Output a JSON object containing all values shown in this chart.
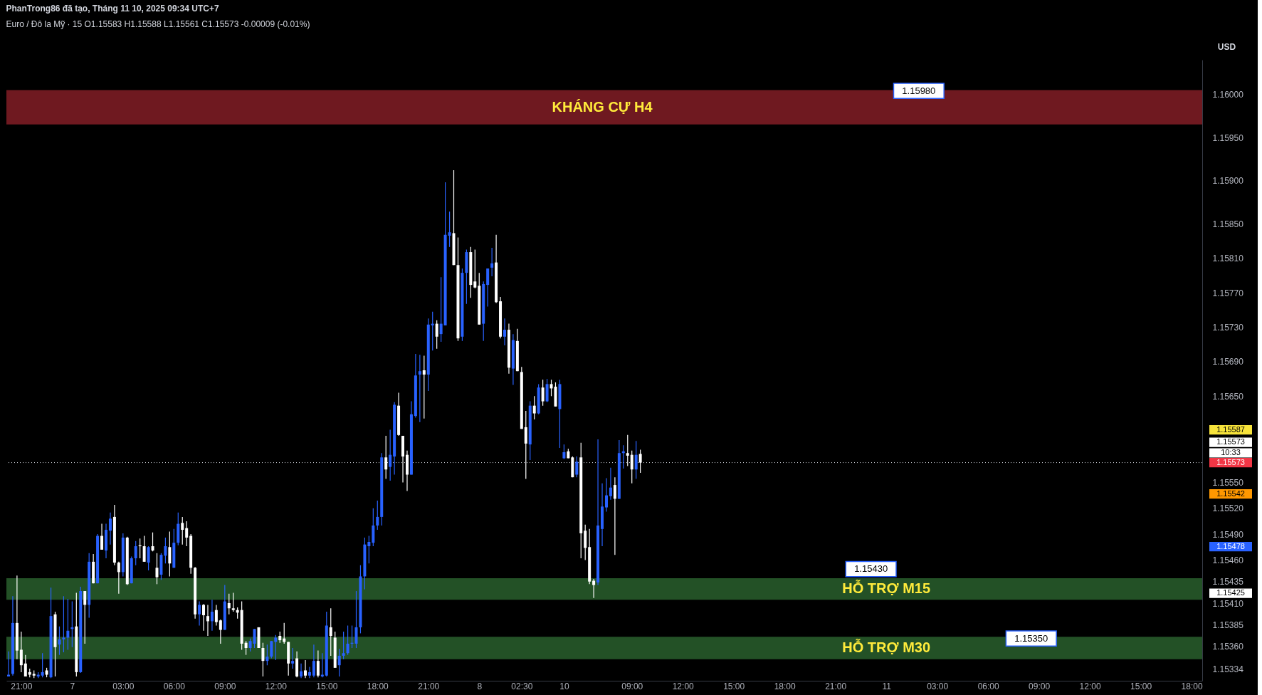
{
  "chart_data": {
    "type": "candlestick",
    "title": "PhanTrong86 đã tạo, Tháng 11 10, 2025 09:34 UTC+7",
    "subtitle": "Euro / Đô la Mỹ · 15  O1.15583  H1.15588  L1.15561  C1.15573  -0.00009 (-0.01%)",
    "ylabel": "USD",
    "categories": [
      null,
      null,
      null,
      "21:00",
      null,
      null,
      null,
      null,
      null,
      null,
      null,
      null,
      null,
      null,
      null,
      "7",
      null,
      null,
      null,
      null,
      null,
      null,
      null,
      null,
      null,
      null,
      null,
      "03:00",
      null,
      null,
      null,
      null,
      null,
      null,
      null,
      null,
      null,
      null,
      null,
      "06:00",
      null,
      null,
      null,
      null,
      null,
      null,
      null,
      null,
      null,
      null,
      null,
      "09:00",
      null,
      null,
      null,
      null,
      null,
      null,
      null,
      null,
      null,
      null,
      null,
      "12:00",
      null,
      null,
      null,
      null,
      null,
      null,
      null,
      null,
      null,
      null,
      null,
      "15:00",
      null,
      null,
      null,
      null,
      null,
      null,
      null,
      null,
      null,
      null,
      null,
      "18:00",
      null,
      null,
      null,
      null,
      null,
      null,
      null,
      null,
      null,
      null,
      null,
      "21:00",
      null,
      null,
      null,
      null,
      null,
      null,
      null,
      null,
      null,
      null,
      null,
      "8",
      null,
      null,
      null,
      null,
      null,
      null,
      null,
      null,
      null,
      "02:30",
      null,
      null,
      null,
      null,
      null,
      null,
      null,
      null,
      null,
      "10",
      null,
      null,
      null,
      null,
      null,
      null,
      null,
      null,
      null,
      null,
      null,
      null,
      null,
      null,
      null,
      "09:00",
      null,
      null,
      null,
      null,
      null,
      null,
      null,
      null,
      null,
      null,
      null,
      "12:00",
      null,
      null,
      null,
      null,
      null,
      null,
      null,
      null,
      null,
      null,
      null,
      "15:00",
      null,
      null,
      null,
      null,
      null,
      null,
      null,
      null,
      null,
      null,
      null,
      "18:00",
      null,
      null,
      null,
      null,
      null,
      null,
      null,
      null,
      null,
      null,
      null,
      "21:00",
      null,
      null,
      null,
      null,
      null,
      null,
      null,
      null,
      null,
      null,
      null,
      "11",
      null,
      null,
      null,
      null,
      null,
      null,
      null,
      null,
      null,
      null,
      null,
      "03:00",
      null,
      null,
      null,
      null,
      null,
      null,
      null,
      null,
      null,
      null,
      null,
      "06:00",
      null,
      null,
      null,
      null,
      null,
      null,
      null,
      null,
      null,
      null,
      null,
      "09:00",
      null,
      null,
      null,
      null,
      null,
      null,
      null,
      null,
      null,
      null,
      null,
      "12:00",
      null,
      null,
      null,
      null,
      null,
      null,
      null,
      null,
      null,
      null,
      null,
      "15:00",
      null,
      null,
      null,
      null,
      null,
      null,
      null,
      null,
      null,
      null,
      null,
      "18:00",
      null,
      null
    ],
    "ohlc": [
      [
        1.15325,
        1.15354,
        1.15325,
        1.15327
      ],
      [
        1.15328,
        1.15418,
        1.15326,
        1.15387
      ],
      [
        1.15387,
        1.15442,
        1.15345,
        1.15355
      ],
      [
        1.15356,
        1.15377,
        1.1533,
        1.15338
      ],
      [
        1.1534,
        1.1535,
        1.15325,
        1.15325
      ],
      [
        1.1533,
        1.15334,
        1.15324,
        1.15327
      ],
      [
        1.15328,
        1.15332,
        1.15323,
        1.15326
      ],
      [
        1.15325,
        1.1533,
        1.15323,
        1.15327
      ],
      [
        1.15326,
        1.15352,
        1.15324,
        1.1533
      ],
      [
        1.15332,
        1.15335,
        1.15324,
        1.15327
      ],
      [
        1.15324,
        1.15428,
        1.15323,
        1.15395
      ],
      [
        1.15397,
        1.154,
        1.15325,
        1.15359
      ],
      [
        1.15362,
        1.15383,
        1.1535,
        1.15368
      ],
      [
        1.15368,
        1.15418,
        1.15353,
        1.1537
      ],
      [
        1.1537,
        1.15415,
        1.15356,
        1.15378
      ],
      [
        1.1538,
        1.15412,
        1.15359,
        1.15382
      ],
      [
        1.15383,
        1.15422,
        1.15325,
        1.1533
      ],
      [
        1.1533,
        1.15429,
        1.15329,
        1.15424
      ],
      [
        1.15424,
        1.15424,
        1.15363,
        1.15408
      ],
      [
        1.15408,
        1.15468,
        1.15393,
        1.15458
      ],
      [
        1.15458,
        1.15467,
        1.15433,
        1.15433
      ],
      [
        1.15433,
        1.1549,
        1.15433,
        1.15488
      ],
      [
        1.15488,
        1.15502,
        1.15472,
        1.15472
      ],
      [
        1.15471,
        1.15502,
        1.15462,
        1.15495
      ],
      [
        1.15494,
        1.15515,
        1.15478,
        1.15508
      ],
      [
        1.1551,
        1.15524,
        1.15454,
        1.15457
      ],
      [
        1.15457,
        1.15458,
        1.15421,
        1.15446
      ],
      [
        1.15446,
        1.15491,
        1.15441,
        1.15486
      ],
      [
        1.15486,
        1.15487,
        1.15431,
        1.15432
      ],
      [
        1.15433,
        1.15464,
        1.15433,
        1.15462
      ],
      [
        1.15462,
        1.15482,
        1.15454,
        1.15476
      ],
      [
        1.15477,
        1.15485,
        1.15462,
        1.15476
      ],
      [
        1.15476,
        1.15488,
        1.15458,
        1.15458
      ],
      [
        1.15457,
        1.15476,
        1.15448,
        1.15475
      ],
      [
        1.15476,
        1.15492,
        1.1547,
        1.15471
      ],
      [
        1.15451,
        1.15468,
        1.15432,
        1.1544
      ],
      [
        1.15443,
        1.15468,
        1.15437,
        1.15466
      ],
      [
        1.15465,
        1.15486,
        1.15456,
        1.15476
      ],
      [
        1.15475,
        1.15493,
        1.15441,
        1.15456
      ],
      [
        1.15451,
        1.15496,
        1.15451,
        1.1548
      ],
      [
        1.1548,
        1.15515,
        1.15477,
        1.15502
      ],
      [
        1.15503,
        1.1551,
        1.15478,
        1.15495
      ],
      [
        1.15497,
        1.15505,
        1.15476,
        1.15486
      ],
      [
        1.15488,
        1.1549,
        1.15444,
        1.15451
      ],
      [
        1.15451,
        1.15452,
        1.15392,
        1.15397
      ],
      [
        1.15397,
        1.15412,
        1.15384,
        1.15408
      ],
      [
        1.15408,
        1.15409,
        1.15378,
        1.15396
      ],
      [
        1.15395,
        1.15408,
        1.15372,
        1.15389
      ],
      [
        1.15389,
        1.15414,
        1.15378,
        1.154
      ],
      [
        1.15402,
        1.15408,
        1.15384,
        1.15388
      ],
      [
        1.1539,
        1.15391,
        1.15363,
        1.15379
      ],
      [
        1.15379,
        1.15431,
        1.15379,
        1.15412
      ],
      [
        1.1541,
        1.15421,
        1.15397,
        1.15404
      ],
      [
        1.15404,
        1.15422,
        1.154,
        1.15402
      ],
      [
        1.15402,
        1.15405,
        1.15392,
        1.15399
      ],
      [
        1.15402,
        1.15412,
        1.15356,
        1.15363
      ],
      [
        1.15364,
        1.15366,
        1.1535,
        1.15358
      ],
      [
        1.15358,
        1.15369,
        1.15354,
        1.15366
      ],
      [
        1.15363,
        1.1538,
        1.15358,
        1.1538
      ],
      [
        1.15382,
        1.15382,
        1.15358,
        1.15358
      ],
      [
        1.15358,
        1.15364,
        1.15325,
        1.15343
      ],
      [
        1.15343,
        1.15362,
        1.15338,
        1.15348
      ],
      [
        1.15348,
        1.15366,
        1.15346,
        1.15366
      ],
      [
        1.15365,
        1.15373,
        1.15344,
        1.1537
      ],
      [
        1.15372,
        1.15377,
        1.15364,
        1.15367
      ],
      [
        1.15369,
        1.15387,
        1.15363,
        1.15365
      ],
      [
        1.15365,
        1.15365,
        1.15326,
        1.1534
      ],
      [
        1.1534,
        1.15358,
        1.15334,
        1.15343
      ],
      [
        1.15346,
        1.15354,
        1.15324,
        1.15325
      ],
      [
        1.15325,
        1.1534,
        1.15323,
        1.15331
      ],
      [
        1.15332,
        1.15344,
        1.15323,
        1.15326
      ],
      [
        1.15326,
        1.15336,
        1.15323,
        1.1533
      ],
      [
        1.15326,
        1.15362,
        1.15324,
        1.15343
      ],
      [
        1.15343,
        1.15355,
        1.15324,
        1.15326
      ],
      [
        1.15325,
        1.15352,
        1.15324,
        1.15327
      ],
      [
        1.15326,
        1.154,
        1.15325,
        1.15384
      ],
      [
        1.15382,
        1.15404,
        1.15349,
        1.15372
      ],
      [
        1.1537,
        1.15377,
        1.15335,
        1.15335
      ],
      [
        1.15338,
        1.15357,
        1.15325,
        1.15349
      ],
      [
        1.15349,
        1.15377,
        1.15345,
        1.15352
      ],
      [
        1.15352,
        1.15384,
        1.1535,
        1.15363
      ],
      [
        1.15363,
        1.15384,
        1.15358,
        1.15364
      ],
      [
        1.15363,
        1.15424,
        1.15358,
        1.15382
      ],
      [
        1.15382,
        1.15454,
        1.15375,
        1.15441
      ],
      [
        1.15441,
        1.15486,
        1.15426,
        1.15478
      ],
      [
        1.15476,
        1.15488,
        1.15456,
        1.15481
      ],
      [
        1.1548,
        1.1552,
        1.15476,
        1.155
      ],
      [
        1.155,
        1.15529,
        1.15495,
        1.1551
      ],
      [
        1.1551,
        1.15584,
        1.155,
        1.15579
      ],
      [
        1.15579,
        1.15604,
        1.15554,
        1.15565
      ],
      [
        1.15568,
        1.15611,
        1.15552,
        1.15582
      ],
      [
        1.1558,
        1.15643,
        1.15559,
        1.1564
      ],
      [
        1.15639,
        1.15654,
        1.15604,
        1.15605
      ],
      [
        1.15604,
        1.15604,
        1.1555,
        1.1558
      ],
      [
        1.15582,
        1.15587,
        1.1554,
        1.15559
      ],
      [
        1.15559,
        1.15644,
        1.15559,
        1.15629
      ],
      [
        1.15627,
        1.15699,
        1.15625,
        1.15674
      ],
      [
        1.15675,
        1.15698,
        1.1562,
        1.15679
      ],
      [
        1.1568,
        1.15697,
        1.15624,
        1.15675
      ],
      [
        1.15675,
        1.1574,
        1.15656,
        1.15733
      ],
      [
        1.15732,
        1.15748,
        1.15703,
        1.15734
      ],
      [
        1.15734,
        1.15738,
        1.15705,
        1.15719
      ],
      [
        1.15722,
        1.15788,
        1.15713,
        1.15734
      ],
      [
        1.15732,
        1.15898,
        1.15732,
        1.15837
      ],
      [
        1.15836,
        1.15864,
        1.15823,
        1.1584
      ],
      [
        1.15839,
        1.15912,
        1.15802,
        1.15802
      ],
      [
        1.15802,
        1.15834,
        1.15714,
        1.15717
      ],
      [
        1.15719,
        1.15798,
        1.15714,
        1.15793
      ],
      [
        1.15793,
        1.1582,
        1.15757,
        1.15817
      ],
      [
        1.15817,
        1.15823,
        1.15764,
        1.15779
      ],
      [
        1.15783,
        1.1582,
        1.15775,
        1.15776
      ],
      [
        1.15778,
        1.15793,
        1.15733,
        1.15733
      ],
      [
        1.15734,
        1.15783,
        1.15714,
        1.1578
      ],
      [
        1.15779,
        1.15798,
        1.15754,
        1.15798
      ],
      [
        1.15799,
        1.15822,
        1.15789,
        1.15804
      ],
      [
        1.15805,
        1.15837,
        1.15758,
        1.15759
      ],
      [
        1.1576,
        1.15765,
        1.15717,
        1.15719
      ],
      [
        1.15719,
        1.1574,
        1.15709,
        1.15727
      ],
      [
        1.15727,
        1.15734,
        1.15676,
        1.15683
      ],
      [
        1.15682,
        1.15722,
        1.15663,
        1.15715
      ],
      [
        1.15714,
        1.15728,
        1.15679,
        1.15679
      ],
      [
        1.15678,
        1.15684,
        1.15612,
        1.15612
      ],
      [
        1.15614,
        1.15633,
        1.15554,
        1.15595
      ],
      [
        1.15594,
        1.15644,
        1.15576,
        1.15639
      ],
      [
        1.15639,
        1.1565,
        1.15623,
        1.1563
      ],
      [
        1.1563,
        1.15664,
        1.15629,
        1.1566
      ],
      [
        1.1566,
        1.15669,
        1.15639,
        1.15644
      ],
      [
        1.15644,
        1.1567,
        1.15643,
        1.15664
      ],
      [
        1.15664,
        1.15669,
        1.1565,
        1.15659
      ],
      [
        1.15661,
        1.15666,
        1.15638,
        1.15638
      ],
      [
        1.15635,
        1.15669,
        1.1559,
        1.15664
      ],
      [
        1.15578,
        1.15594,
        1.15577,
        1.15585
      ],
      [
        1.15586,
        1.15589,
        1.15578,
        1.15578
      ],
      [
        1.15579,
        1.1558,
        1.15556,
        1.15556
      ],
      [
        1.15559,
        1.1558,
        1.15556,
        1.15574
      ],
      [
        1.15579,
        1.15596,
        1.15462,
        1.15491
      ],
      [
        1.15494,
        1.15501,
        1.1546,
        1.15474
      ],
      [
        1.15475,
        1.15496,
        1.15432,
        1.15435
      ],
      [
        1.15436,
        1.15438,
        1.15416,
        1.15431
      ],
      [
        1.15434,
        1.156,
        1.15431,
        1.155
      ],
      [
        1.15496,
        1.15549,
        1.15476,
        1.15522
      ],
      [
        1.15521,
        1.15555,
        1.15516,
        1.15535
      ],
      [
        1.15534,
        1.15567,
        1.1553,
        1.15544
      ],
      [
        1.15547,
        1.15556,
        1.15466,
        1.15531
      ],
      [
        1.15531,
        1.15599,
        1.15531,
        1.15584
      ],
      [
        1.15584,
        1.15593,
        1.15566,
        1.15586
      ],
      [
        1.15584,
        1.15605,
        1.15569,
        1.15581
      ],
      [
        1.15582,
        1.15587,
        1.15549,
        1.15565
      ],
      [
        1.15565,
        1.15598,
        1.15554,
        1.15582
      ],
      [
        1.15583,
        1.15588,
        1.15561,
        1.15573
      ],
      null,
      null,
      null,
      null,
      null,
      null,
      null,
      null,
      null,
      null,
      null,
      null,
      null,
      null,
      null,
      null,
      null,
      null,
      null,
      null,
      null,
      null,
      null,
      null,
      null,
      null,
      null,
      null,
      null,
      null,
      null,
      null,
      null,
      null,
      null,
      null,
      null,
      null,
      null,
      null,
      null,
      null,
      null,
      null,
      null,
      null,
      null,
      null,
      null,
      null,
      null,
      null,
      null,
      null,
      null,
      null,
      null,
      null,
      null,
      null,
      null,
      null,
      null,
      null,
      null,
      null,
      null,
      null,
      null,
      null,
      null,
      null,
      null,
      null,
      null,
      null,
      null,
      null,
      null,
      null,
      null,
      null,
      null,
      null,
      null,
      null,
      null,
      null,
      null,
      null,
      null,
      null,
      null,
      null,
      null,
      null,
      null,
      null,
      null,
      null,
      null,
      null,
      null,
      null,
      null,
      null,
      null,
      null,
      null,
      null,
      null,
      null,
      null,
      null,
      null,
      null,
      null,
      null,
      null,
      null,
      null,
      null,
      null,
      null,
      null,
      null,
      null,
      null,
      null,
      null,
      null,
      null
    ],
    "colors": [
      "#2962ff",
      "#2962ff",
      "#ffffff",
      "#ffffff",
      "#ffffff",
      "#ffffff",
      "#ffffff",
      "#2962ff",
      "#2962ff",
      "#ffffff",
      "#2962ff",
      "#ffffff",
      "#2962ff",
      "#2962ff",
      "#2962ff",
      "#2962ff",
      "#ffffff",
      "#2962ff",
      "#ffffff",
      "#2962ff",
      "#ffffff",
      "#2962ff",
      "#ffffff",
      "#2962ff",
      "#2962ff",
      "#ffffff",
      "#ffffff",
      "#2962ff",
      "#ffffff",
      "#2962ff",
      "#2962ff",
      "#ffffff",
      "#ffffff",
      "#2962ff",
      "#ffffff",
      "#ffffff",
      "#2962ff",
      "#2962ff",
      "#ffffff",
      "#2962ff",
      "#2962ff",
      "#ffffff",
      "#ffffff",
      "#ffffff",
      "#ffffff",
      "#2962ff",
      "#ffffff",
      "#ffffff",
      "#2962ff",
      "#ffffff",
      "#ffffff",
      "#2962ff",
      "#ffffff",
      "#ffffff",
      "#ffffff",
      "#ffffff",
      "#ffffff",
      "#2962ff",
      "#2962ff",
      "#ffffff",
      "#ffffff",
      "#2962ff",
      "#2962ff",
      "#2962ff",
      "#ffffff",
      "#ffffff",
      "#ffffff",
      "#2962ff",
      "#ffffff",
      "#2962ff",
      "#ffffff",
      "#2962ff",
      "#2962ff",
      "#ffffff",
      "#2962ff",
      "#2962ff",
      "#ffffff",
      "#ffffff",
      "#2962ff",
      "#2962ff",
      "#2962ff",
      "#2962ff",
      "#2962ff",
      "#2962ff",
      "#2962ff",
      "#2962ff",
      "#2962ff",
      "#2962ff",
      "#2962ff",
      "#ffffff",
      "#2962ff",
      "#2962ff",
      "#ffffff",
      "#ffffff",
      "#ffffff",
      "#2962ff",
      "#2962ff",
      "#2962ff",
      "#ffffff",
      "#2962ff",
      "#2962ff",
      "#ffffff",
      "#2962ff",
      "#2962ff",
      "#2962ff",
      "#ffffff",
      "#ffffff",
      "#2962ff",
      "#2962ff",
      "#ffffff",
      "#ffffff",
      "#ffffff",
      "#2962ff",
      "#2962ff",
      "#2962ff",
      "#ffffff",
      "#ffffff",
      "#2962ff",
      "#ffffff",
      "#2962ff",
      "#ffffff",
      "#ffffff",
      "#ffffff",
      "#2962ff",
      "#ffffff",
      "#2962ff",
      "#ffffff",
      "#2962ff",
      "#ffffff",
      "#ffffff",
      "#2962ff",
      "#2962ff",
      "#ffffff",
      "#ffffff",
      "#2962ff",
      "#ffffff",
      "#ffffff",
      "#ffffff",
      "#ffffff",
      "#2962ff",
      "#2962ff",
      "#2962ff",
      "#2962ff",
      "#ffffff",
      "#2962ff",
      "#2962ff",
      "#ffffff",
      "#ffffff",
      "#2962ff",
      "#ffffff",
      null,
      null,
      null,
      null,
      null,
      null,
      null,
      null,
      null,
      null,
      null,
      null,
      null,
      null,
      null,
      null,
      null,
      null,
      null,
      null,
      null,
      null,
      null,
      null,
      null,
      null,
      null,
      null,
      null,
      null,
      null,
      null,
      null,
      null,
      null,
      null,
      null,
      null,
      null,
      null,
      null,
      null,
      null,
      null,
      null,
      null,
      null,
      null,
      null,
      null,
      null,
      null,
      null,
      null,
      null,
      null,
      null,
      null,
      null,
      null,
      null,
      null,
      null,
      null,
      null,
      null,
      null,
      null,
      null,
      null,
      null,
      null,
      null,
      null,
      null,
      null,
      null,
      null,
      null,
      null,
      null,
      null,
      null,
      null,
      null,
      null,
      null,
      null,
      null,
      null,
      null,
      null,
      null,
      null,
      null,
      null,
      null,
      null,
      null,
      null,
      null,
      null,
      null,
      null,
      null,
      null,
      null,
      null,
      null,
      null,
      null,
      null,
      null,
      null,
      null,
      null,
      null,
      null,
      null,
      null,
      null,
      null,
      null,
      null,
      null,
      null,
      null,
      null,
      null,
      null,
      null,
      null
    ],
    "ylim": [
      1.1532,
      1.1604
    ],
    "yticks": [
      {
        "value": 1.16,
        "label": "1.16000"
      },
      {
        "value": 1.1595,
        "label": "1.15950"
      },
      {
        "value": 1.159,
        "label": "1.15900"
      },
      {
        "value": 1.1585,
        "label": "1.15850"
      },
      {
        "value": 1.1581,
        "label": "1.15810"
      },
      {
        "value": 1.1577,
        "label": "1.15770"
      },
      {
        "value": 1.1573,
        "label": "1.15730"
      },
      {
        "value": 1.1569,
        "label": "1.15690"
      },
      {
        "value": 1.1565,
        "label": "1.15650"
      },
      {
        "value": 1.1555,
        "label": "1.15550"
      },
      {
        "value": 1.1552,
        "label": "1.15520"
      },
      {
        "value": 1.1549,
        "label": "1.15490"
      },
      {
        "value": 1.1546,
        "label": "1.15460"
      },
      {
        "value": 1.15435,
        "label": "1.15435"
      },
      {
        "value": 1.1541,
        "label": "1.15410"
      },
      {
        "value": 1.15385,
        "label": "1.15385"
      },
      {
        "value": 1.1536,
        "label": "1.15360"
      },
      {
        "value": 1.15334,
        "label": "1.15334"
      }
    ],
    "bands": [
      {
        "axis": "y",
        "from": 1.15965,
        "to": 1.16005,
        "label": "KHÁNG CỰ H4",
        "color": "#7b1c23"
      },
      {
        "axis": "y",
        "from": 1.15414,
        "to": 1.15439,
        "label": "HỖ TRỢ M15",
        "color": "#275a2a"
      },
      {
        "axis": "y",
        "from": 1.15345,
        "to": 1.15371,
        "label": "HỖ TRỢ M30",
        "color": "#275a2a"
      }
    ],
    "ref_lines": [
      {
        "axis": "y",
        "value": 1.15573,
        "label": "1.15573",
        "line_style": "dotted"
      }
    ],
    "annotations": [
      "1.15980",
      "1.15430",
      "1.15350",
      "1.15587",
      "1.15573",
      "10:33",
      "1.15542",
      "1.15478",
      "1.15425"
    ],
    "grid": false
  }
}
